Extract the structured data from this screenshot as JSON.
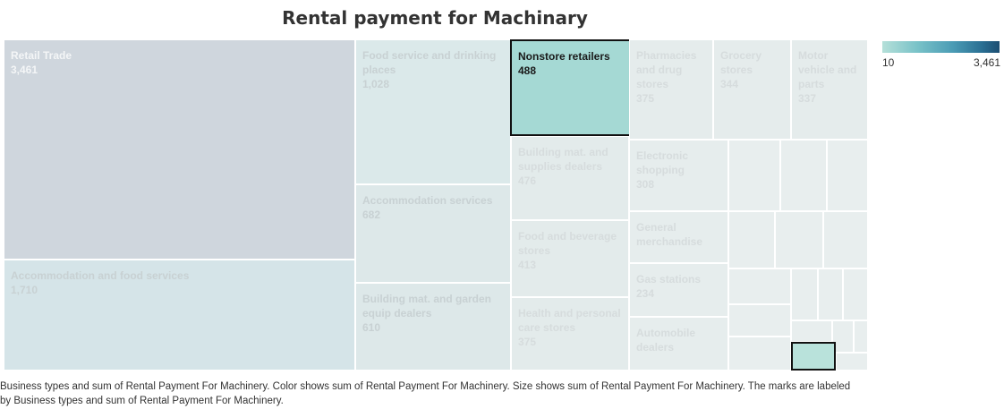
{
  "chart_data": {
    "type": "treemap",
    "title": "Rental payment for Machinary",
    "cells": [
      {
        "name": "Retail Trade",
        "value": 3461,
        "label": "3,461",
        "style": "top",
        "bg": "#cfd6dd"
      },
      {
        "name": "Accommodation and food services",
        "value": 1710,
        "label": "1,710",
        "style": "",
        "bg": "#d5e4e8"
      },
      {
        "name": "Food service and drinking places",
        "value": 1028,
        "label": "1,028",
        "style": "",
        "bg": "#dbe9ea"
      },
      {
        "name": "Accommodation services",
        "value": 682,
        "label": "682",
        "style": "",
        "bg": "#dde8e9"
      },
      {
        "name": "Building mat. and garden equip dealers",
        "value": 610,
        "label": "610",
        "style": "",
        "bg": "#dde8e9"
      },
      {
        "name": "Nonstore retailers",
        "value": 488,
        "label": "488",
        "style": "sel",
        "bg": "#a5d9d4"
      },
      {
        "name": "Building mat. and supplies dealers",
        "value": 476,
        "label": "476",
        "style": "dim",
        "bg": "#e3ebeb"
      },
      {
        "name": "Food and beverage stores",
        "value": 413,
        "label": "413",
        "style": "dim",
        "bg": "#e3ebeb"
      },
      {
        "name": "Health and personal care stores",
        "value": 375,
        "label": "375",
        "style": "dim",
        "bg": "#e3ebeb"
      },
      {
        "name": "Pharmacies and drug stores",
        "value": 375,
        "label": "375",
        "style": "dim",
        "bg": "#e5ecec"
      },
      {
        "name": "Grocery stores",
        "value": 344,
        "label": "344",
        "style": "dim",
        "bg": "#e5ecec"
      },
      {
        "name": "Motor vehicle and parts",
        "value": 337,
        "label": "337",
        "style": "dim",
        "bg": "#e5ecec"
      },
      {
        "name": "Electronic shopping",
        "value": 308,
        "label": "308",
        "style": "dim",
        "bg": "#e6eded"
      },
      {
        "name": "General merchandise",
        "value": null,
        "label": "",
        "style": "dim",
        "bg": "#e6eded"
      },
      {
        "name": "Gas stations",
        "value": 234,
        "label": "234",
        "style": "dim",
        "bg": "#e6eded"
      },
      {
        "name": "Automobile dealers",
        "value": null,
        "label": "",
        "style": "dim",
        "bg": "#e6eded"
      }
    ],
    "legend": {
      "title": "",
      "min_label": "10",
      "max_label": "3,461",
      "min": 10,
      "max": 3461
    },
    "caption": "Business types and sum of Rental Payment For Machinery.  Color shows sum of Rental Payment For Machinery.  Size shows sum of Rental Payment For Machinery.  The marks are labeled by Business types and sum of Rental Payment For Machinery."
  }
}
